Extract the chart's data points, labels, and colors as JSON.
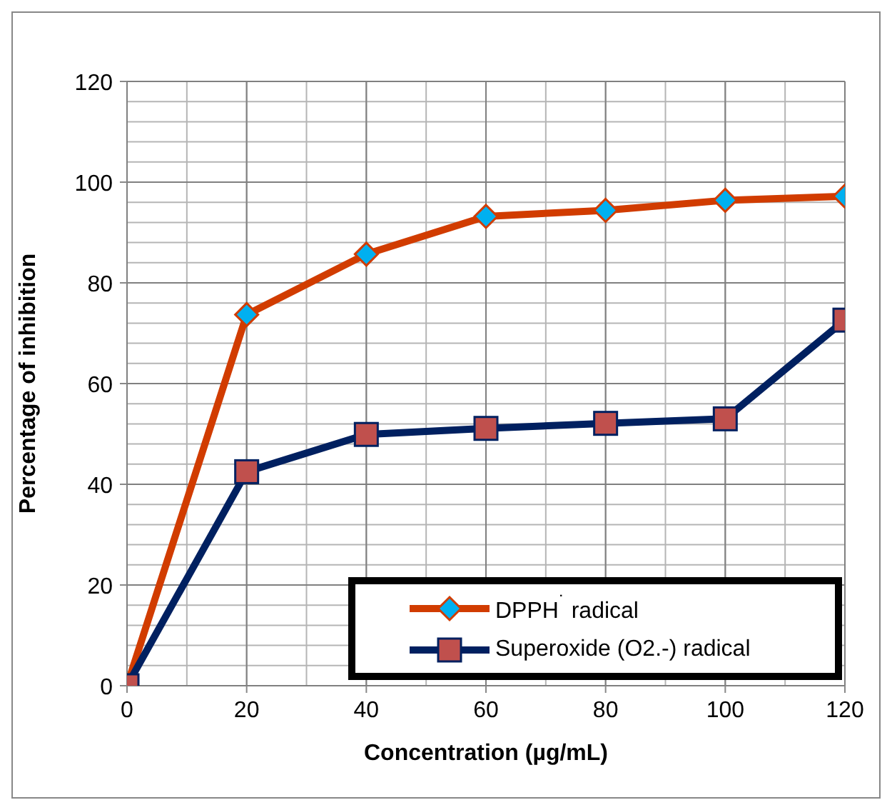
{
  "chart_data": {
    "type": "line",
    "xlabel": "Concentration (µg/mL)",
    "ylabel": "Percentage of inhibition",
    "x": [
      0,
      20,
      40,
      60,
      80,
      100,
      120
    ],
    "series": [
      {
        "name": "DPPH$^{˙}$ radical",
        "color": "#d13c00",
        "marker": "diamond",
        "colors": [
          "#00b0f0",
          "#00b0f0",
          "#00b0f0",
          "#00b0f0",
          "#00b0f0",
          "#00b0f0",
          "#00b0f0"
        ],
        "values": [
          0,
          73.7,
          85.7,
          93.2,
          94.4,
          96.4,
          97.2
        ]
      },
      {
        "name": "Superoxide (O2.-) radical",
        "color": "#002060",
        "marker": "square",
        "colors": [
          "#c0504d",
          "#c0504d",
          "#c0504d",
          "#c0504d",
          "#c0504d",
          "#c0504d",
          "#c0504d"
        ],
        "values": [
          0,
          42.5,
          49.9,
          51.1,
          52.1,
          53.0,
          72.6
        ]
      }
    ],
    "xlim": [
      0,
      120
    ],
    "xticks": [
      0,
      {
        "value": 10,
        "label": null
      },
      20,
      {
        "value": 30,
        "label": null
      },
      40,
      {
        "value": 50,
        "label": null
      },
      60,
      {
        "value": 70,
        "label": null
      },
      80,
      {
        "value": 90,
        "label": null
      },
      100,
      {
        "value": 110,
        "label": null
      },
      120
    ],
    "ylim": [
      0,
      120
    ],
    "yticks": [
      0,
      {
        "value": 4,
        "label": null
      },
      {
        "value": 8,
        "label": null
      },
      {
        "value": 12,
        "label": null
      },
      {
        "value": 16,
        "label": null
      },
      20,
      {
        "value": 24,
        "label": null
      },
      {
        "value": 28,
        "label": null
      },
      {
        "value": 32,
        "label": null
      },
      {
        "value": 36,
        "label": null
      },
      40,
      {
        "value": 44,
        "label": null
      },
      {
        "value": 48,
        "label": null
      },
      {
        "value": 52,
        "label": null
      },
      {
        "value": 56,
        "label": null
      },
      60,
      {
        "value": 64,
        "label": null
      },
      {
        "value": 68,
        "label": null
      },
      {
        "value": 72,
        "label": null
      },
      {
        "value": 76,
        "label": null
      },
      80,
      {
        "value": 84,
        "label": null
      },
      {
        "value": 88,
        "label": null
      },
      {
        "value": 92,
        "label": null
      },
      {
        "value": 96,
        "label": null
      },
      100,
      {
        "value": 104,
        "label": null
      },
      {
        "value": 108,
        "label": null
      },
      {
        "value": 112,
        "label": null
      },
      {
        "value": 116,
        "label": null
      },
      120
    ],
    "grid": true,
    "legend": "bottom right",
    "line_style": "solid"
  }
}
